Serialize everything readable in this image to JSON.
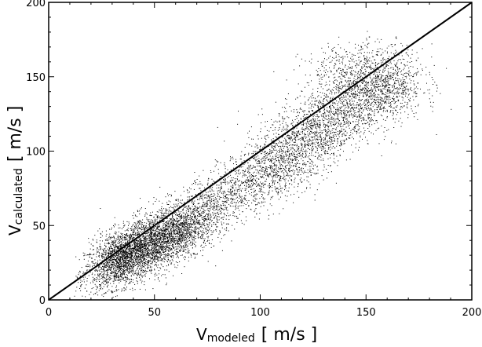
{
  "chart_data": {
    "type": "scatter",
    "title": "",
    "xlabel": {
      "main": "V",
      "subscript": "modeled",
      "unit": "[ m/s ]"
    },
    "ylabel": {
      "main": "V",
      "subscript": "calculated",
      "unit": "[ m/s ]"
    },
    "xlim": [
      0,
      200
    ],
    "ylim": [
      0,
      200
    ],
    "xticks": [
      0,
      50,
      100,
      150,
      200
    ],
    "yticks": [
      0,
      50,
      100,
      150,
      200
    ],
    "grid": false,
    "legend": "none",
    "reference_line": {
      "from": [
        0,
        0
      ],
      "to": [
        200,
        200
      ]
    },
    "point_color": "#000000",
    "approx_point_count": 9000,
    "point_clusters": [
      {
        "x_center": 35,
        "y_center": 28,
        "x_spread": 9,
        "y_spread": 9,
        "weight": 0.18,
        "slope": 1.0
      },
      {
        "x_center": 48,
        "y_center": 38,
        "x_spread": 12,
        "y_spread": 10,
        "weight": 0.22,
        "slope": 1.0
      },
      {
        "x_center": 62,
        "y_center": 48,
        "x_spread": 10,
        "y_spread": 9,
        "weight": 0.1,
        "slope": 1.0
      },
      {
        "x_center": 82,
        "y_center": 68,
        "x_spread": 12,
        "y_spread": 10,
        "weight": 0.08,
        "slope": 1.0
      },
      {
        "x_center": 108,
        "y_center": 92,
        "x_spread": 12,
        "y_spread": 12,
        "weight": 0.12,
        "slope": 1.0
      },
      {
        "x_center": 130,
        "y_center": 118,
        "x_spread": 12,
        "y_spread": 13,
        "weight": 0.13,
        "slope": 0.9
      },
      {
        "x_center": 155,
        "y_center": 142,
        "x_spread": 11,
        "y_spread": 12,
        "weight": 0.14,
        "slope": 0.4
      },
      {
        "x_center": 143,
        "y_center": 158,
        "x_spread": 12,
        "y_spread": 8,
        "weight": 0.03,
        "slope": 0.3
      }
    ]
  }
}
